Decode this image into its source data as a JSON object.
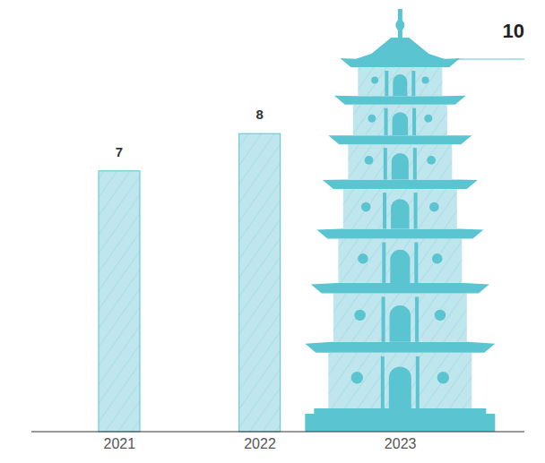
{
  "chart_data": {
    "type": "bar",
    "categories": [
      "2021",
      "2022",
      "2023"
    ],
    "values": [
      7,
      8,
      10
    ],
    "color": "#5bc4d1",
    "ylim": [
      0,
      10
    ],
    "yticks": [
      0,
      10
    ],
    "data_labels": true,
    "tick_labels": "x",
    "grid": false
  }
}
